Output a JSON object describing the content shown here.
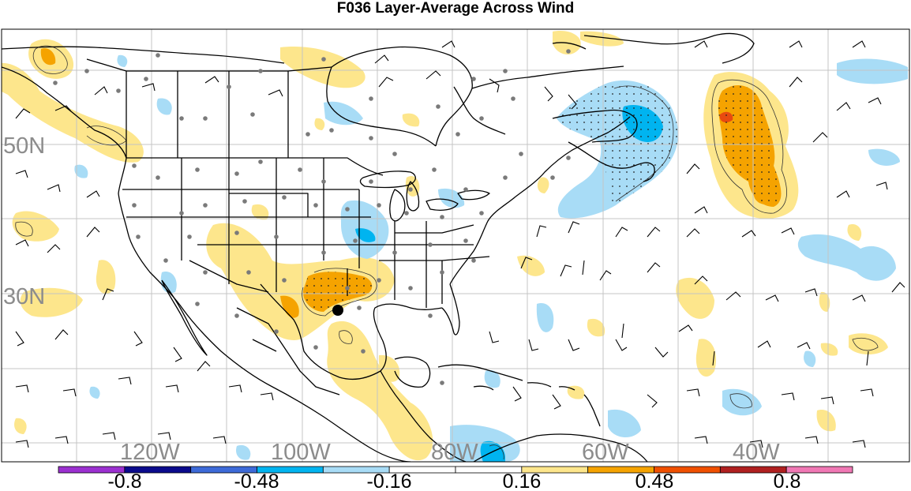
{
  "title": "F036 Layer-Average Across Wind",
  "latitude_labels": [
    "50N",
    "30N"
  ],
  "longitude_labels": [
    "120W",
    "100W",
    "80W",
    "60W",
    "40W"
  ],
  "colorbar": {
    "ticks": [
      "-0.8",
      "-0.48",
      "-0.16",
      "0.16",
      "0.48",
      "0.8"
    ],
    "colors": [
      "#9b30d0",
      "#0a0a8c",
      "#3d6ad8",
      "#00b4f0",
      "#a8dcf6",
      "#ffffff",
      "#ffffff",
      "#fde68c",
      "#f5a300",
      "#f05000",
      "#b02020",
      "#f078b4"
    ]
  },
  "layers": {
    "positive_light": "#fde68c",
    "positive_mid": "#f5a300",
    "positive_strong": "#e84a10",
    "negative_light": "#a8dcf6",
    "negative_mid": "#00b4f0"
  },
  "marker": "storm-center-dot"
}
